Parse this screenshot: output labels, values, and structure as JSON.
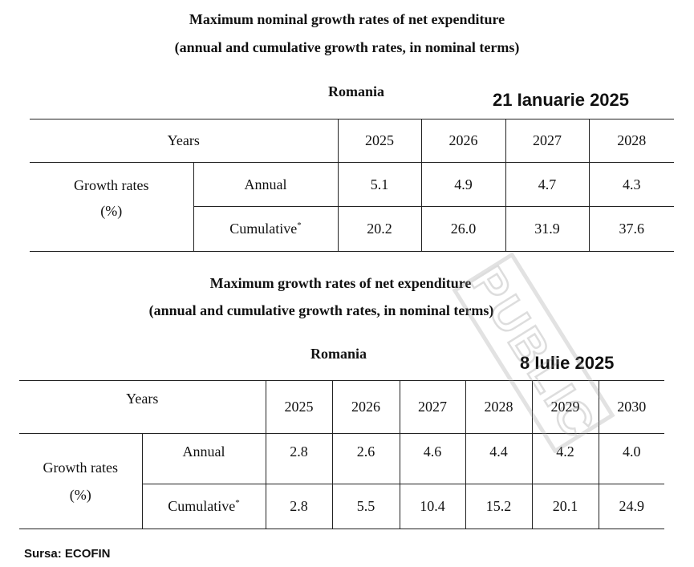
{
  "table1": {
    "title_line1": "Maximum nominal growth rates of net expenditure",
    "title_line2": "(annual and cumulative growth rates, in nominal terms)",
    "country": "Romania",
    "date_label": "21 Ianuarie 2025",
    "years_label": "Years",
    "years": [
      "2025",
      "2026",
      "2027",
      "2028"
    ],
    "row_group_label": "Growth rates",
    "row_group_unit": "(%)",
    "annual_label": "Annual",
    "annual_values": [
      "5.1",
      "4.9",
      "4.7",
      "4.3"
    ],
    "cumulative_label": "Cumulative",
    "cumulative_mark": "*",
    "cumulative_values": [
      "20.2",
      "26.0",
      "31.9",
      "37.6"
    ]
  },
  "table2": {
    "title_line1": "Maximum growth rates of net expenditure",
    "title_line2": "(annual and cumulative growth rates, in nominal terms)",
    "country": "Romania",
    "date_label": "8 Iulie 2025",
    "years_label": "Years",
    "years": [
      "2025",
      "2026",
      "2027",
      "2028",
      "2029",
      "2030"
    ],
    "row_group_label": "Growth rates",
    "row_group_unit": "(%)",
    "annual_label": "Annual",
    "annual_values": [
      "2.8",
      "2.6",
      "4.6",
      "4.4",
      "4.2",
      "4.0"
    ],
    "cumulative_label": "Cumulative",
    "cumulative_mark": "*",
    "cumulative_values": [
      "2.8",
      "5.5",
      "10.4",
      "15.2",
      "20.1",
      "24.9"
    ]
  },
  "watermark": {
    "text": "PUBLIC"
  },
  "source": {
    "label": "Sursa: ECOFIN"
  }
}
